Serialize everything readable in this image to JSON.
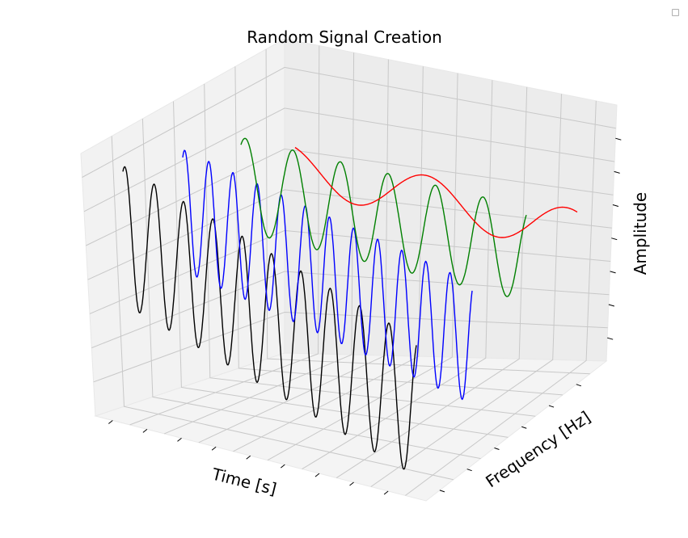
{
  "chart_data": {
    "type": "line",
    "projection": "3d",
    "title": "Random Signal Creation",
    "xlabel": "Time [s]",
    "ylabel": "Frequency [Hz]",
    "zlabel": "Amplitude",
    "tick_labels_shown": false,
    "grid": true,
    "legend": "top-right (empty)",
    "series": [
      {
        "color": "#000000",
        "frequency_index": 0,
        "cycles": 10,
        "phase": 1.15,
        "amplitude": 1.0
      },
      {
        "color": "#0000ff",
        "frequency_index": 1,
        "cycles": 12,
        "phase": 1.05,
        "amplitude": 1.0
      },
      {
        "color": "#008000",
        "frequency_index": 2,
        "cycles": 6,
        "phase": 1.0,
        "amplitude": 1.0
      },
      {
        "color": "#ff0000",
        "frequency_index": 3,
        "cycles": 2,
        "phase": 2.0,
        "amplitude": 0.55
      }
    ]
  }
}
